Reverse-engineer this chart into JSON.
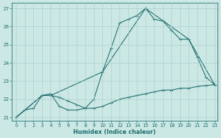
{
  "xlabel": "Humidex (Indice chaleur)",
  "bg_color": "#cce8e5",
  "grid_color": "#aacfcc",
  "line_color": "#1a6b6b",
  "xlim": [
    -0.5,
    23.3
  ],
  "ylim": [
    20.8,
    27.3
  ],
  "yticks": [
    21,
    22,
    23,
    24,
    25,
    26,
    27
  ],
  "xticks": [
    0,
    1,
    2,
    3,
    4,
    5,
    6,
    7,
    8,
    9,
    10,
    11,
    12,
    13,
    14,
    15,
    16,
    17,
    18,
    19,
    20,
    21,
    22,
    23
  ],
  "series1": [
    [
      0,
      21.0
    ],
    [
      1,
      21.4
    ],
    [
      2,
      21.5
    ],
    [
      3,
      22.2
    ],
    [
      4,
      22.3
    ],
    [
      5,
      21.6
    ],
    [
      6,
      21.4
    ],
    [
      7,
      21.4
    ],
    [
      8,
      21.5
    ],
    [
      9,
      22.0
    ],
    [
      10,
      23.5
    ],
    [
      11,
      24.8
    ],
    [
      12,
      26.2
    ],
    [
      13,
      26.4
    ],
    [
      14,
      26.6
    ],
    [
      15,
      27.0
    ],
    [
      16,
      26.4
    ],
    [
      17,
      26.3
    ],
    [
      18,
      25.8
    ],
    [
      19,
      25.3
    ],
    [
      20,
      25.3
    ],
    [
      21,
      24.3
    ],
    [
      22,
      23.2
    ],
    [
      23,
      22.8
    ]
  ],
  "series2": [
    [
      0,
      21.0
    ],
    [
      3,
      22.2
    ],
    [
      4,
      22.2
    ],
    [
      10,
      23.5
    ],
    [
      15,
      27.0
    ],
    [
      20,
      25.3
    ],
    [
      23,
      22.8
    ]
  ],
  "series3": [
    [
      0,
      21.0
    ],
    [
      3,
      22.2
    ],
    [
      4,
      22.2
    ],
    [
      5,
      22.1
    ],
    [
      6,
      21.9
    ],
    [
      7,
      21.7
    ],
    [
      8,
      21.5
    ],
    [
      9,
      21.5
    ],
    [
      10,
      21.6
    ],
    [
      11,
      21.8
    ],
    [
      12,
      22.0
    ],
    [
      13,
      22.1
    ],
    [
      14,
      22.2
    ],
    [
      15,
      22.3
    ],
    [
      16,
      22.4
    ],
    [
      17,
      22.5
    ],
    [
      18,
      22.5
    ],
    [
      19,
      22.6
    ],
    [
      20,
      22.6
    ],
    [
      21,
      22.7
    ],
    [
      22,
      22.75
    ],
    [
      23,
      22.8
    ]
  ]
}
